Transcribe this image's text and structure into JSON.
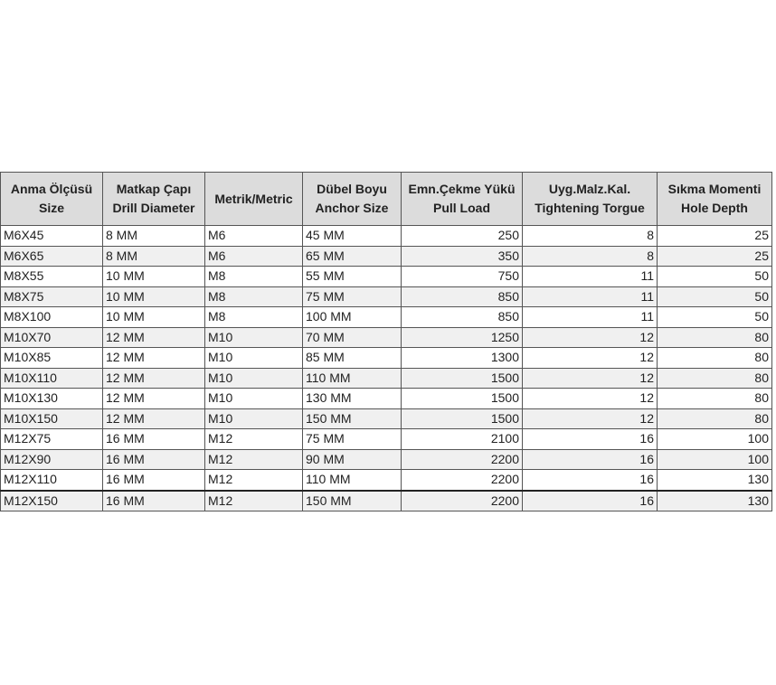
{
  "headers": [
    [
      "Anma Ölçüsü",
      "Size"
    ],
    [
      "Matkap Çapı",
      "Drill Diameter"
    ],
    [
      "Metrik/Metric",
      ""
    ],
    [
      "Dübel Boyu",
      "Anchor Size"
    ],
    [
      "Emn.Çekme Yükü",
      "Pull Load"
    ],
    [
      "Uyg.Malz.Kal.",
      "Tightening Torgue"
    ],
    [
      "Sıkma Momenti",
      "Hole Depth"
    ]
  ],
  "rows": [
    [
      "M6X45",
      "8 MM",
      "M6",
      "45 MM",
      "250",
      "8",
      "25"
    ],
    [
      "M6X65",
      "8 MM",
      "M6",
      "65 MM",
      "350",
      "8",
      "25"
    ],
    [
      "M8X55",
      "10 MM",
      "M8",
      "55 MM",
      "750",
      "11",
      "50"
    ],
    [
      "M8X75",
      "10 MM",
      "M8",
      "75 MM",
      "850",
      "11",
      "50"
    ],
    [
      "M8X100",
      "10 MM",
      "M8",
      "100 MM",
      "850",
      "11",
      "50"
    ],
    [
      "M10X70",
      "12 MM",
      "M10",
      "70 MM",
      "1250",
      "12",
      "80"
    ],
    [
      "M10X85",
      "12 MM",
      "M10",
      "85 MM",
      "1300",
      "12",
      "80"
    ],
    [
      "M10X110",
      "12 MM",
      "M10",
      "110 MM",
      "1500",
      "12",
      "80"
    ],
    [
      "M10X130",
      "12 MM",
      "M10",
      "130 MM",
      "1500",
      "12",
      "80"
    ],
    [
      "M10X150",
      "12 MM",
      "M10",
      "150 MM",
      "1500",
      "12",
      "80"
    ],
    [
      "M12X75",
      "16 MM",
      "M12",
      "75 MM",
      "2100",
      "16",
      "100"
    ],
    [
      "M12X90",
      "16 MM",
      "M12",
      "90 MM",
      "2200",
      "16",
      "100"
    ],
    [
      "M12X110",
      "16 MM",
      "M12",
      "110 MM",
      "2200",
      "16",
      "130"
    ],
    [
      "M12X150",
      "16 MM",
      "M12",
      "150 MM",
      "2200",
      "16",
      "130"
    ]
  ]
}
